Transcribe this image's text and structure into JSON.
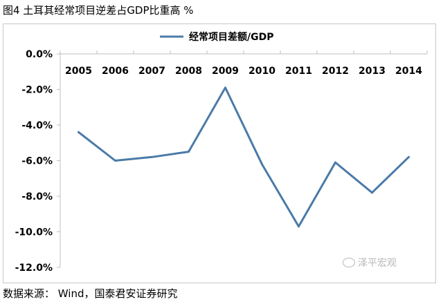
{
  "figure": {
    "title": "图4  土耳其经常项目逆差占GDP比重高  %",
    "source": "数据来源： Wind，国泰君安证券研究",
    "watermark": "泽平宏观"
  },
  "chart_data": {
    "type": "line",
    "title": "",
    "xlabel": "",
    "ylabel": "",
    "categories": [
      "2005",
      "2006",
      "2007",
      "2008",
      "2009",
      "2010",
      "2011",
      "2012",
      "2013",
      "2014"
    ],
    "series": [
      {
        "name": "经常项目差额/GDP",
        "values": [
          -4.4,
          -6.0,
          -5.8,
          -5.5,
          -1.9,
          -6.2,
          -9.7,
          -6.1,
          -7.8,
          -5.8
        ],
        "color": "#4a7aa8"
      }
    ],
    "ylim": [
      -12.0,
      0.0
    ],
    "yticks": [
      "0.0%",
      "-2.0%",
      "-4.0%",
      "-6.0%",
      "-8.0%",
      "-10.0%",
      "-12.0%"
    ],
    "ytick_values": [
      0,
      -2,
      -4,
      -6,
      -8,
      -10,
      -12
    ],
    "x_labels_position": "top",
    "legend_position": "top-center",
    "grid": false,
    "axis_color": "#bfbfbf"
  }
}
